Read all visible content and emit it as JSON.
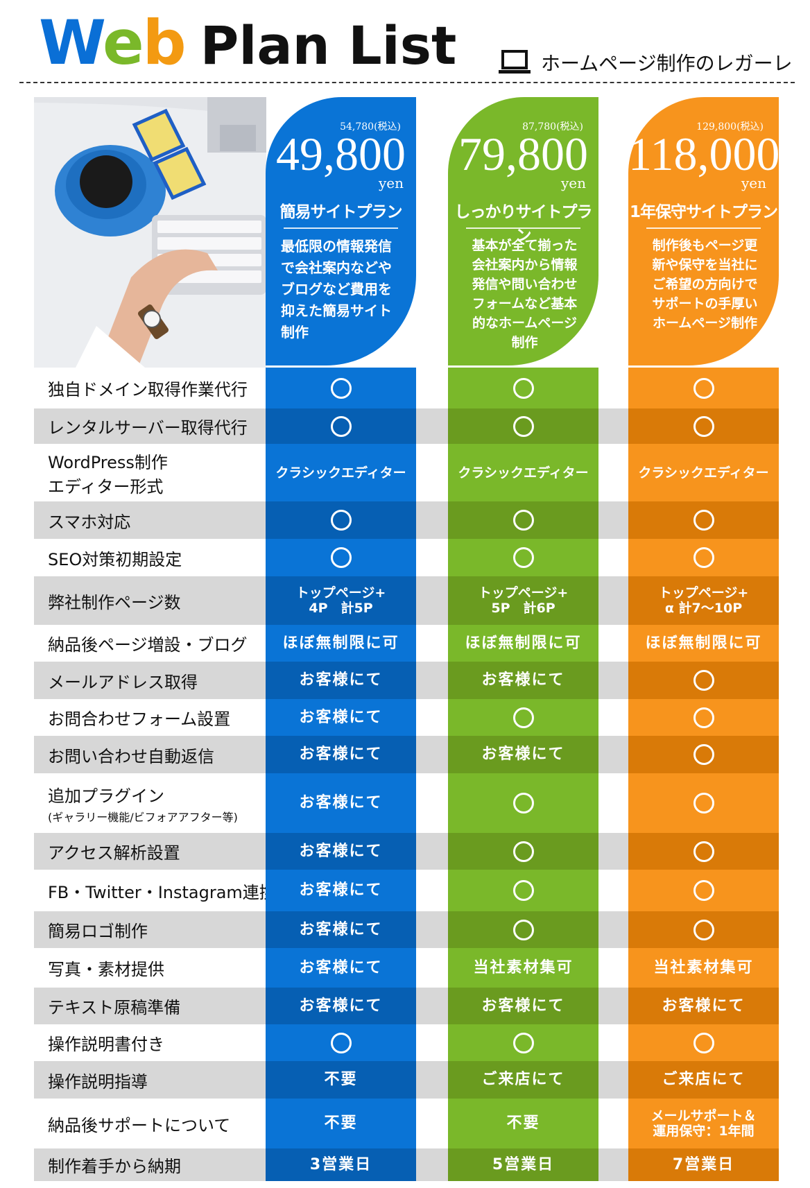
{
  "title": {
    "part_w": "W",
    "part_e": "e",
    "part_b": "b",
    "rest": "Plan List"
  },
  "brand": "ホームページ制作のレガーレ",
  "plans": [
    {
      "tax": "54,780(税込)",
      "price": "49,800",
      "unit": "yen",
      "name": "簡易サイトプラン",
      "desc": [
        "最低限の情報発信",
        "で会社案内などや",
        "ブログなど費用を",
        "抑えた簡易サイト",
        "制作"
      ]
    },
    {
      "tax": "87,780(税込)",
      "price": "79,800",
      "unit": "yen",
      "name": "しっかりサイトプラン",
      "desc": [
        "基本が全て揃った",
        "会社案内から情報",
        "発信や問い合わせ",
        "フォームなど基本",
        "的なホームページ",
        "制作"
      ]
    },
    {
      "tax": "129,800(税込)",
      "price": "118,000",
      "unit": "yen",
      "name": "1年保守サイトプラン",
      "desc": [
        "制作後もページ更",
        "新や保守を当社に",
        "ご希望の方向けで",
        "サポートの手厚い",
        "ホームページ制作"
      ]
    }
  ],
  "rows": [
    {
      "label": "独自ドメイン取得作業代行",
      "cells": [
        "○",
        "○",
        "○"
      ]
    },
    {
      "label": "レンタルサーバー取得代行",
      "cells": [
        "○",
        "○",
        "○"
      ]
    },
    {
      "label": "WordPress制作",
      "label2": "エディター形式",
      "cells": [
        "クラシックエディター",
        "クラシックエディター",
        "クラシックエディター"
      ]
    },
    {
      "label": "スマホ対応",
      "cells": [
        "○",
        "○",
        "○"
      ]
    },
    {
      "label": "SEO対策初期設定",
      "cells": [
        "○",
        "○",
        "○"
      ]
    },
    {
      "label": "弊社制作ページ数",
      "cells": [
        "トップページ+\n4P　計5P",
        "トップページ+\n5P　計6P",
        "トップページ+\nα 計7〜10P"
      ]
    },
    {
      "label": "納品後ページ増設・ブログ",
      "cells": [
        "ほぼ無制限に可",
        "ほぼ無制限に可",
        "ほぼ無制限に可"
      ]
    },
    {
      "label": "メールアドレス取得",
      "cells": [
        "お客様にて",
        "お客様にて",
        "○"
      ]
    },
    {
      "label": "お問合わせフォーム設置",
      "cells": [
        "お客様にて",
        "○",
        "○"
      ]
    },
    {
      "label": "お問い合わせ自動返信",
      "cells": [
        "お客様にて",
        "お客様にて",
        "○"
      ]
    },
    {
      "label": "追加プラグイン",
      "sub": "(ギャラリー機能/ビフォアアフター等)",
      "cells": [
        "お客様にて",
        "○",
        "○"
      ]
    },
    {
      "label": "アクセス解析設置",
      "cells": [
        "お客様にて",
        "○",
        "○"
      ]
    },
    {
      "label": "FB・Twitter・Instagram連携",
      "cells": [
        "お客様にて",
        "○",
        "○"
      ]
    },
    {
      "label": "簡易ロゴ制作",
      "cells": [
        "お客様にて",
        "○",
        "○"
      ]
    },
    {
      "label": "写真・素材提供",
      "cells": [
        "お客様にて",
        "当社素材集可",
        "当社素材集可"
      ]
    },
    {
      "label": "テキスト原稿準備",
      "cells": [
        "お客様にて",
        "お客様にて",
        "お客様にて"
      ]
    },
    {
      "label": "操作説明書付き",
      "cells": [
        "○",
        "○",
        "○"
      ]
    },
    {
      "label": "操作説明指導",
      "cells": [
        "不要",
        "ご来店にて",
        "ご来店にて"
      ]
    },
    {
      "label": "納品後サポートについて",
      "cells": [
        "不要",
        "不要",
        "メールサポート＆\n運用保守：1年間"
      ]
    },
    {
      "label": "制作着手から納期",
      "cells": [
        "3営業日",
        "5営業日",
        "7営業日"
      ]
    }
  ]
}
